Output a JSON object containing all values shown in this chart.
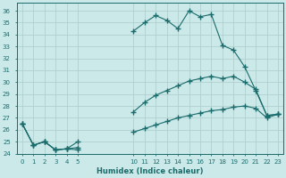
{
  "xlabel": "Humidex (Indice chaleur)",
  "background_color": "#cce9e9",
  "grid_color": "#b0d0d0",
  "line_color": "#1a6b6b",
  "xlim": [
    -0.5,
    23.5
  ],
  "ylim": [
    24.0,
    36.7
  ],
  "yticks": [
    24,
    25,
    26,
    27,
    28,
    29,
    30,
    31,
    32,
    33,
    34,
    35,
    36
  ],
  "xticks": [
    0,
    1,
    2,
    3,
    4,
    5,
    10,
    11,
    12,
    13,
    14,
    15,
    16,
    17,
    18,
    19,
    20,
    21,
    22,
    23
  ],
  "series1_x": [
    0,
    1,
    2,
    3,
    4,
    5,
    10,
    11,
    12,
    13,
    14,
    15,
    16,
    17,
    18,
    19,
    20,
    21,
    22,
    23
  ],
  "series1_y": [
    26.5,
    24.7,
    25.0,
    24.3,
    24.4,
    25.0,
    34.3,
    35.0,
    35.6,
    35.2,
    34.5,
    36.0,
    35.5,
    35.7,
    33.1,
    32.7,
    31.3,
    29.3,
    27.2,
    27.3
  ],
  "series2_x": [
    0,
    1,
    2,
    3,
    4,
    5,
    10,
    11,
    12,
    13,
    14,
    15,
    16,
    17,
    18,
    19,
    20,
    21,
    22,
    23
  ],
  "series2_y": [
    26.5,
    24.7,
    25.0,
    24.3,
    24.4,
    24.5,
    27.5,
    28.3,
    28.9,
    29.3,
    29.7,
    30.1,
    30.3,
    30.5,
    30.3,
    30.5,
    30.0,
    29.4,
    27.2,
    27.3
  ],
  "series3_x": [
    0,
    1,
    2,
    3,
    4,
    5,
    10,
    11,
    12,
    13,
    14,
    15,
    16,
    17,
    18,
    19,
    20,
    21,
    22,
    23
  ],
  "series3_y": [
    26.5,
    24.7,
    25.0,
    24.3,
    24.4,
    24.3,
    25.8,
    26.1,
    26.4,
    26.7,
    27.0,
    27.2,
    27.4,
    27.6,
    27.7,
    27.9,
    28.0,
    27.8,
    27.0,
    27.3
  ]
}
